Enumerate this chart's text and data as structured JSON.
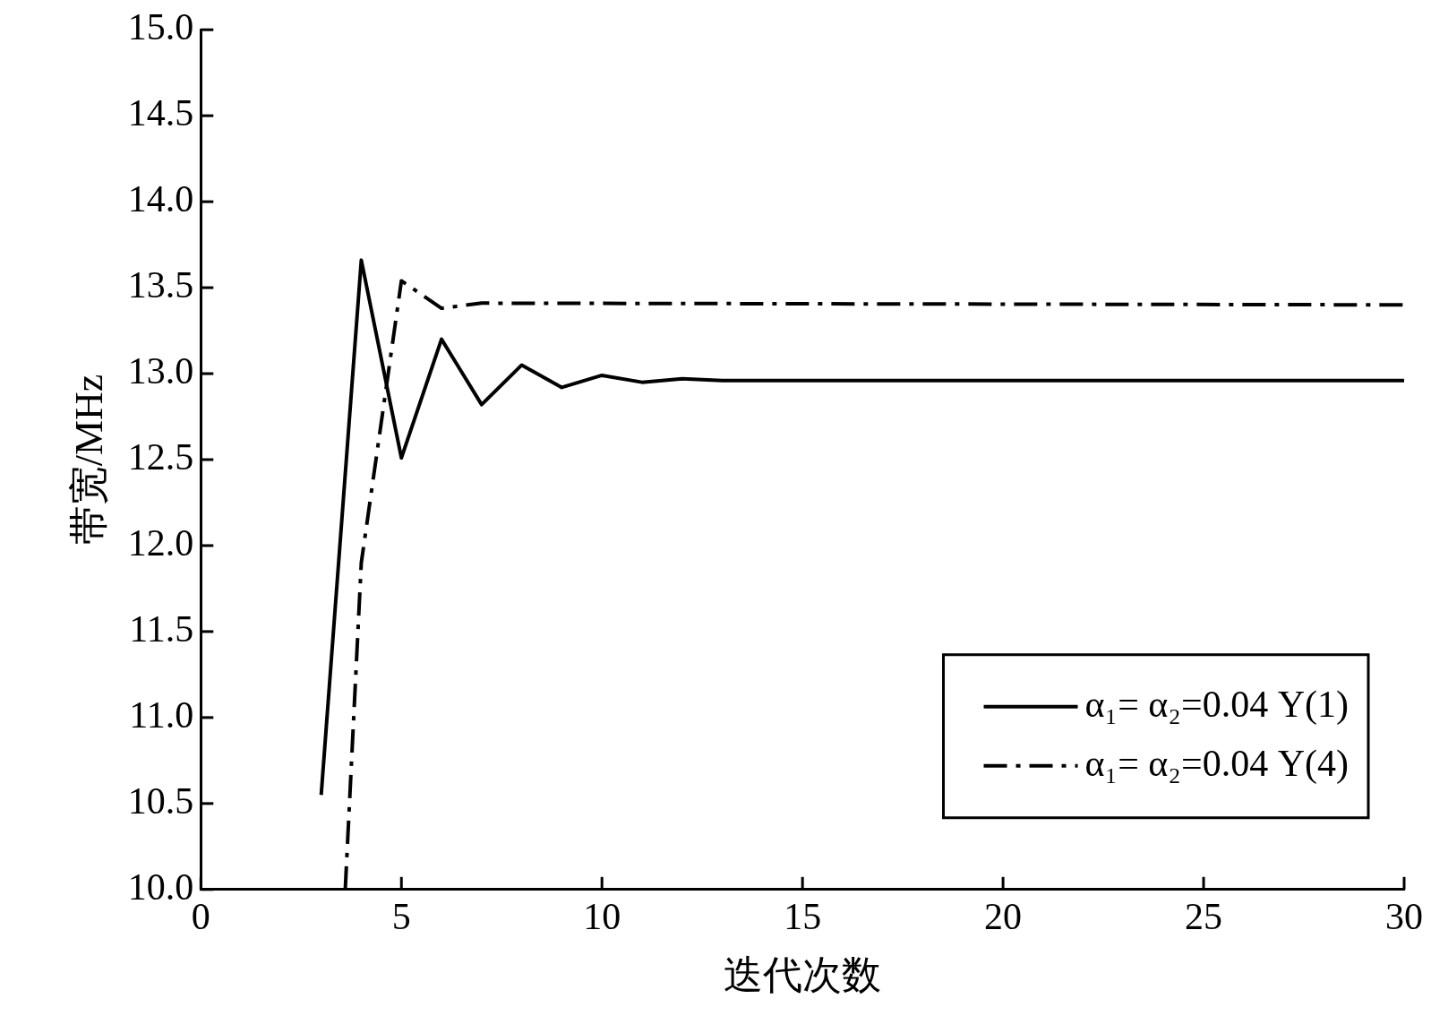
{
  "chart_data": {
    "type": "line",
    "xlabel": "迭代次数",
    "ylabel": "带宽/MHz",
    "xlim": [
      0,
      30
    ],
    "xticks": [
      0,
      5,
      10,
      15,
      20,
      25,
      30
    ],
    "ylim": [
      10,
      15
    ],
    "yticks": [
      {
        "value": 10,
        "label": "10.0"
      },
      {
        "value": 10.5,
        "label": "10.5"
      },
      {
        "value": 11,
        "label": "11.0"
      },
      {
        "value": 11.5,
        "label": "11.5"
      },
      {
        "value": 12,
        "label": "12.0"
      },
      {
        "value": 12.5,
        "label": "12.5"
      },
      {
        "value": 13,
        "label": "13.0"
      },
      {
        "value": 13.5,
        "label": "13.5"
      },
      {
        "value": 14,
        "label": "14.0"
      },
      {
        "value": 14.5,
        "label": "14.5"
      },
      {
        "value": 15,
        "label": "15.0"
      }
    ],
    "grid": false,
    "legend": "bottom right",
    "marker": "none",
    "series": [
      {
        "name": "α₁= α₂=0.04 Y(1)",
        "color": "#000000",
        "line_style": "solid",
        "x": [
          3,
          4,
          5,
          6,
          7,
          8,
          9,
          10,
          11,
          12,
          13,
          30
        ],
        "values": [
          10.55,
          13.66,
          12.51,
          13.2,
          12.82,
          13.05,
          12.92,
          12.99,
          12.95,
          12.97,
          12.96,
          12.96
        ]
      },
      {
        "name": "α₁= α₂=0.04 Y(4)",
        "color": "#000000",
        "line_style": "dashdot",
        "x": [
          3.6,
          4,
          5,
          6,
          7,
          30
        ],
        "values": [
          10,
          11.9,
          13.54,
          13.38,
          13.41,
          13.4
        ]
      }
    ]
  }
}
